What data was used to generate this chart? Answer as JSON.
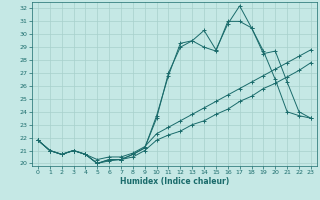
{
  "xlabel": "Humidex (Indice chaleur)",
  "bg_color": "#c5e8e5",
  "grid_color": "#a8d0cc",
  "line_color": "#1a6b6b",
  "xlim": [
    -0.5,
    23.5
  ],
  "ylim": [
    19.8,
    32.5
  ],
  "yticks": [
    20,
    21,
    22,
    23,
    24,
    25,
    26,
    27,
    28,
    29,
    30,
    31,
    32
  ],
  "xticks": [
    0,
    1,
    2,
    3,
    4,
    5,
    6,
    7,
    8,
    9,
    10,
    11,
    12,
    13,
    14,
    15,
    16,
    17,
    18,
    19,
    20,
    21,
    22,
    23
  ],
  "lines": [
    {
      "x": [
        0,
        1,
        2,
        3,
        4,
        5,
        6,
        7,
        8,
        9,
        10,
        11,
        12,
        13,
        14,
        15,
        16,
        17,
        18,
        19,
        20,
        21,
        22,
        23
      ],
      "y": [
        21.8,
        21.0,
        20.7,
        21.0,
        20.7,
        20.0,
        20.3,
        20.3,
        20.7,
        21.2,
        23.7,
        26.8,
        29.3,
        29.5,
        30.3,
        28.8,
        30.8,
        32.2,
        30.5,
        28.7,
        26.5,
        24.0,
        23.7,
        23.5
      ]
    },
    {
      "x": [
        0,
        1,
        2,
        3,
        4,
        5,
        6,
        7,
        8,
        9,
        10,
        11,
        12,
        13,
        14,
        15,
        16,
        17,
        18,
        19,
        20,
        21,
        22,
        23
      ],
      "y": [
        21.8,
        21.0,
        20.7,
        21.0,
        20.7,
        20.0,
        20.3,
        20.3,
        20.7,
        21.2,
        23.5,
        27.0,
        29.0,
        29.5,
        29.0,
        28.7,
        31.0,
        31.0,
        30.5,
        28.5,
        28.7,
        26.3,
        24.0,
        23.5
      ]
    },
    {
      "x": [
        0,
        1,
        2,
        3,
        4,
        5,
        6,
        7,
        8,
        9,
        10,
        11,
        12,
        13,
        14,
        15,
        16,
        17,
        18,
        19,
        20,
        21,
        22,
        23
      ],
      "y": [
        21.8,
        21.0,
        20.7,
        21.0,
        20.7,
        20.3,
        20.5,
        20.5,
        20.8,
        21.3,
        22.3,
        22.8,
        23.3,
        23.8,
        24.3,
        24.8,
        25.3,
        25.8,
        26.3,
        26.8,
        27.3,
        27.8,
        28.3,
        28.8
      ]
    },
    {
      "x": [
        0,
        1,
        2,
        3,
        4,
        5,
        6,
        7,
        8,
        9,
        10,
        11,
        12,
        13,
        14,
        15,
        16,
        17,
        18,
        19,
        20,
        21,
        22,
        23
      ],
      "y": [
        21.8,
        21.0,
        20.7,
        21.0,
        20.7,
        20.0,
        20.2,
        20.3,
        20.5,
        21.0,
        21.8,
        22.2,
        22.5,
        23.0,
        23.3,
        23.8,
        24.2,
        24.8,
        25.2,
        25.8,
        26.2,
        26.7,
        27.2,
        27.8
      ]
    }
  ]
}
